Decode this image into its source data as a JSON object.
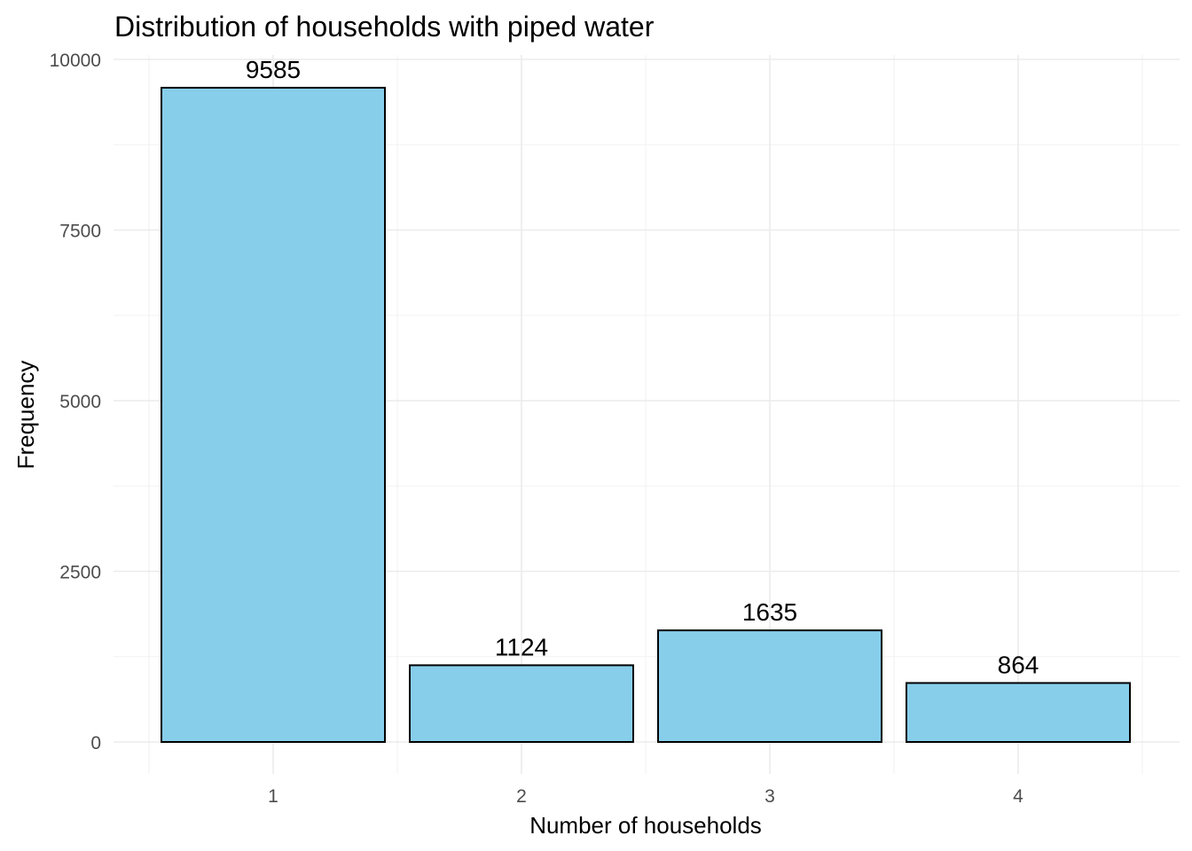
{
  "chart_data": {
    "type": "bar",
    "title": "Distribution of households with piped water",
    "xlabel": "Number of households",
    "ylabel": "Frequency",
    "categories": [
      "1",
      "2",
      "3",
      "4"
    ],
    "values": [
      9585,
      1124,
      1635,
      864
    ],
    "data_labels": [
      "9585",
      "1124",
      "1635",
      "864"
    ],
    "ylim": [
      0,
      10000
    ],
    "y_ticks": [
      0,
      2500,
      5000,
      7500,
      10000
    ],
    "y_tick_labels": [
      "0",
      "2500",
      "5000",
      "7500",
      "10000"
    ],
    "bar_fill": "#87CEEB",
    "bar_outline": "#000000",
    "grid": true,
    "legend": "none"
  }
}
